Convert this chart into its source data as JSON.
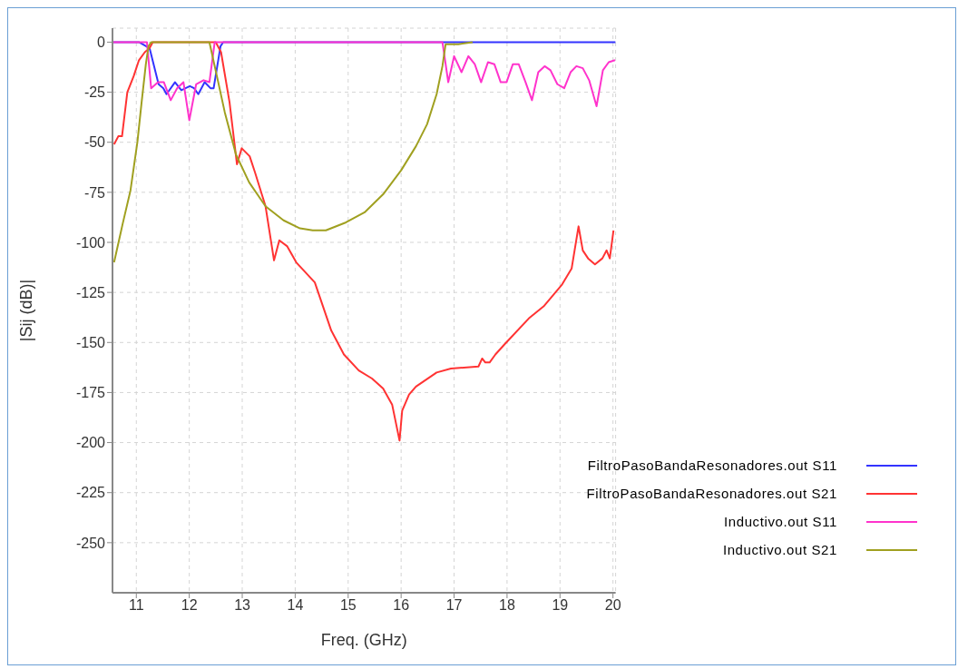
{
  "chart_data": {
    "type": "line",
    "xlabel": "Freq. (GHz)",
    "ylabel": "|Sij (dB)|",
    "xlim": [
      10.55,
      20.05
    ],
    "xticks": [
      11,
      12,
      13,
      14,
      15,
      16,
      17,
      18,
      19,
      20
    ],
    "ylim": [
      -275,
      7
    ],
    "yticks": [
      0,
      -25,
      -50,
      -75,
      -100,
      -125,
      -150,
      -175,
      -200,
      -225,
      -250
    ],
    "grid": true,
    "legend": "bottom right",
    "marker": "none",
    "line_style": "solid",
    "series": [
      {
        "name": "FiltroPasoBandaResonadores.out S11",
        "color": "#3333ff",
        "x": [
          10.55,
          11.05,
          11.25,
          11.42,
          11.51,
          11.57,
          11.73,
          11.85,
          12.01,
          12.09,
          12.17,
          12.29,
          12.4,
          12.46,
          12.59,
          12.64,
          20.05
        ],
        "values": [
          0,
          0,
          -3,
          -21,
          -23,
          -26,
          -20,
          -24,
          -22,
          -23,
          -26,
          -20,
          -23,
          -23,
          -2,
          0,
          0
        ]
      },
      {
        "name": "FiltroPasoBandaResonadores.out S21",
        "color": "#ff3333",
        "x": [
          10.58,
          10.66,
          10.73,
          10.83,
          10.95,
          11.05,
          11.16,
          11.25,
          11.31,
          12.5,
          12.6,
          12.76,
          12.9,
          12.99,
          13.14,
          13.24,
          13.44,
          13.6,
          13.7,
          13.85,
          14.02,
          14.37,
          14.68,
          14.92,
          15.2,
          15.45,
          15.66,
          15.83,
          15.97,
          16.02,
          16.15,
          16.28,
          16.67,
          16.94,
          17.46,
          17.53,
          17.59,
          17.67,
          17.78,
          17.95,
          18.41,
          18.69,
          19.04,
          19.22,
          19.35,
          19.43,
          19.53,
          19.66,
          19.8,
          19.88,
          19.94,
          20.01
        ],
        "values": [
          -51,
          -47,
          -47,
          -25,
          -17,
          -9,
          -5,
          -3,
          0,
          0,
          -5,
          -30,
          -61,
          -53,
          -57,
          -65,
          -82,
          -109,
          -99,
          -102,
          -110,
          -120,
          -144,
          -156,
          -164,
          -168,
          -173,
          -181,
          -199,
          -184,
          -176,
          -172,
          -165,
          -163,
          -162,
          -158,
          -160,
          -160,
          -156,
          -151,
          -138,
          -132,
          -121,
          -113,
          -92,
          -104,
          -108,
          -111,
          -108,
          -104,
          -108,
          -94
        ]
      },
      {
        "name": "Inductivo.out S11",
        "color": "#ff33cc",
        "x": [
          10.55,
          11.2,
          11.28,
          11.41,
          11.52,
          11.65,
          11.77,
          11.89,
          12.0,
          12.13,
          12.27,
          12.38,
          12.48,
          16.78,
          16.89,
          17.0,
          17.14,
          17.27,
          17.39,
          17.51,
          17.64,
          17.76,
          17.88,
          17.99,
          18.11,
          18.22,
          18.35,
          18.47,
          18.59,
          18.71,
          18.82,
          18.95,
          19.08,
          19.2,
          19.31,
          19.43,
          19.55,
          19.69,
          19.81,
          19.92,
          20.04
        ],
        "values": [
          0,
          0,
          -23,
          -20,
          -20,
          -29,
          -23,
          -20,
          -39,
          -21,
          -19,
          -20,
          0,
          0,
          -20,
          -7,
          -15,
          -7,
          -11,
          -20,
          -10,
          -11,
          -20,
          -20,
          -11,
          -11,
          -20,
          -29,
          -15,
          -12,
          -14,
          -21,
          -23,
          -15,
          -12,
          -13,
          -19,
          -32,
          -14,
          -10,
          -9
        ]
      },
      {
        "name": "Inductivo.out S21",
        "color": "#a0a020",
        "x": [
          10.58,
          10.74,
          10.89,
          11.02,
          11.1,
          11.18,
          11.23,
          11.28,
          12.38,
          12.53,
          12.67,
          12.88,
          13.13,
          13.44,
          13.78,
          14.09,
          14.33,
          14.58,
          14.96,
          15.31,
          15.66,
          16.0,
          16.28,
          16.49,
          16.67,
          16.78,
          16.84,
          16.91,
          17.08,
          17.35
        ],
        "values": [
          -110,
          -91,
          -74,
          -50,
          -30,
          -11,
          -2,
          0,
          0,
          -18,
          -35,
          -56,
          -70,
          -82,
          -89,
          -93,
          -94,
          -94,
          -90,
          -85,
          -76,
          -64,
          -52,
          -41,
          -26,
          -12,
          -1,
          -1,
          -1,
          0
        ]
      }
    ]
  }
}
